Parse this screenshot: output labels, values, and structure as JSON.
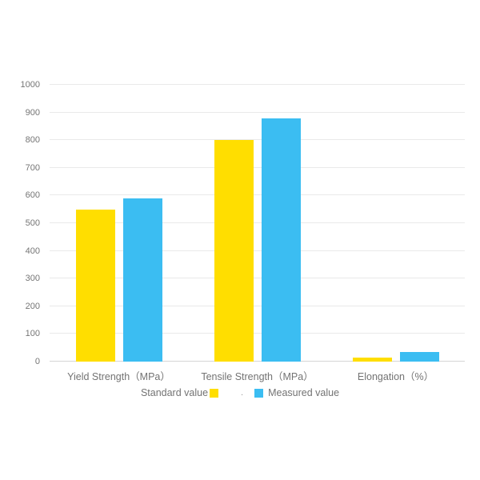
{
  "chart": {
    "legend": {
      "separator": "."
    }
  },
  "chart_data": {
    "type": "bar",
    "title": "",
    "xlabel": "",
    "ylabel": "",
    "categories": [
      "Yield Strength（MPa）",
      "Tensile Strength（MPa）",
      "Elongation（%）"
    ],
    "series": [
      {
        "name": "Standard value",
        "color": "#FFDE00",
        "values": [
          550,
          800,
          15
        ]
      },
      {
        "name": "Measured value",
        "color": "#3BBDF2",
        "values": [
          590,
          880,
          35
        ]
      }
    ],
    "ylim": [
      0,
      1000
    ],
    "yticks": [
      0,
      100,
      200,
      300,
      400,
      500,
      600,
      700,
      800,
      900,
      1000
    ],
    "grid": true,
    "legend_position": "bottom"
  }
}
